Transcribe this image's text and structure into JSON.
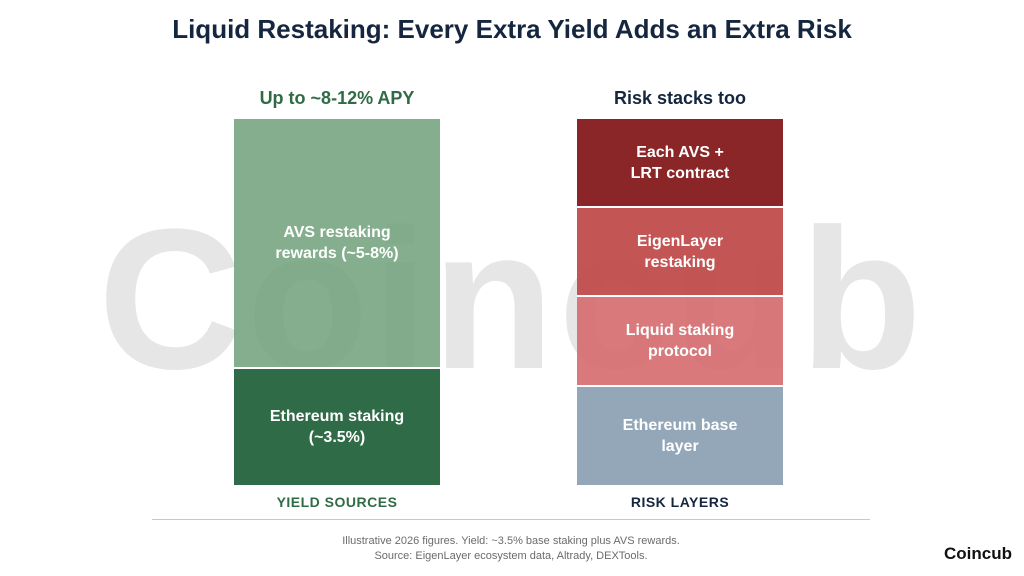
{
  "title": "Liquid Restaking: Every Extra Yield Adds an Extra Risk",
  "watermark": "Coincub",
  "yield": {
    "heading": "Up to ~8-12% APY",
    "label": "YIELD SOURCES",
    "blocks": [
      {
        "text": "AVS restaking\nrewards (~5-8%)",
        "color": "#70a17c"
      },
      {
        "text": "Ethereum staking\n(~3.5%)",
        "color": "#2f6b47"
      }
    ]
  },
  "risk": {
    "heading": "Risk stacks too",
    "label": "RISK LAYERS",
    "blocks": [
      {
        "text": "Each AVS +\nLRT contract",
        "color": "#8a2628"
      },
      {
        "text": "EigenLayer\nrestaking",
        "color": "#c04848"
      },
      {
        "text": "Liquid staking\nprotocol",
        "color": "#d66e70"
      },
      {
        "text": "Ethereum base\nlayer",
        "color": "#93a7b8"
      }
    ]
  },
  "footnote": {
    "line1": "Illustrative 2026 figures. Yield: ~3.5% base staking plus AVS rewards.",
    "line2": "Source: EigenLayer ecosystem data, Altrady, DEXTools."
  },
  "brand": "Coincub"
}
